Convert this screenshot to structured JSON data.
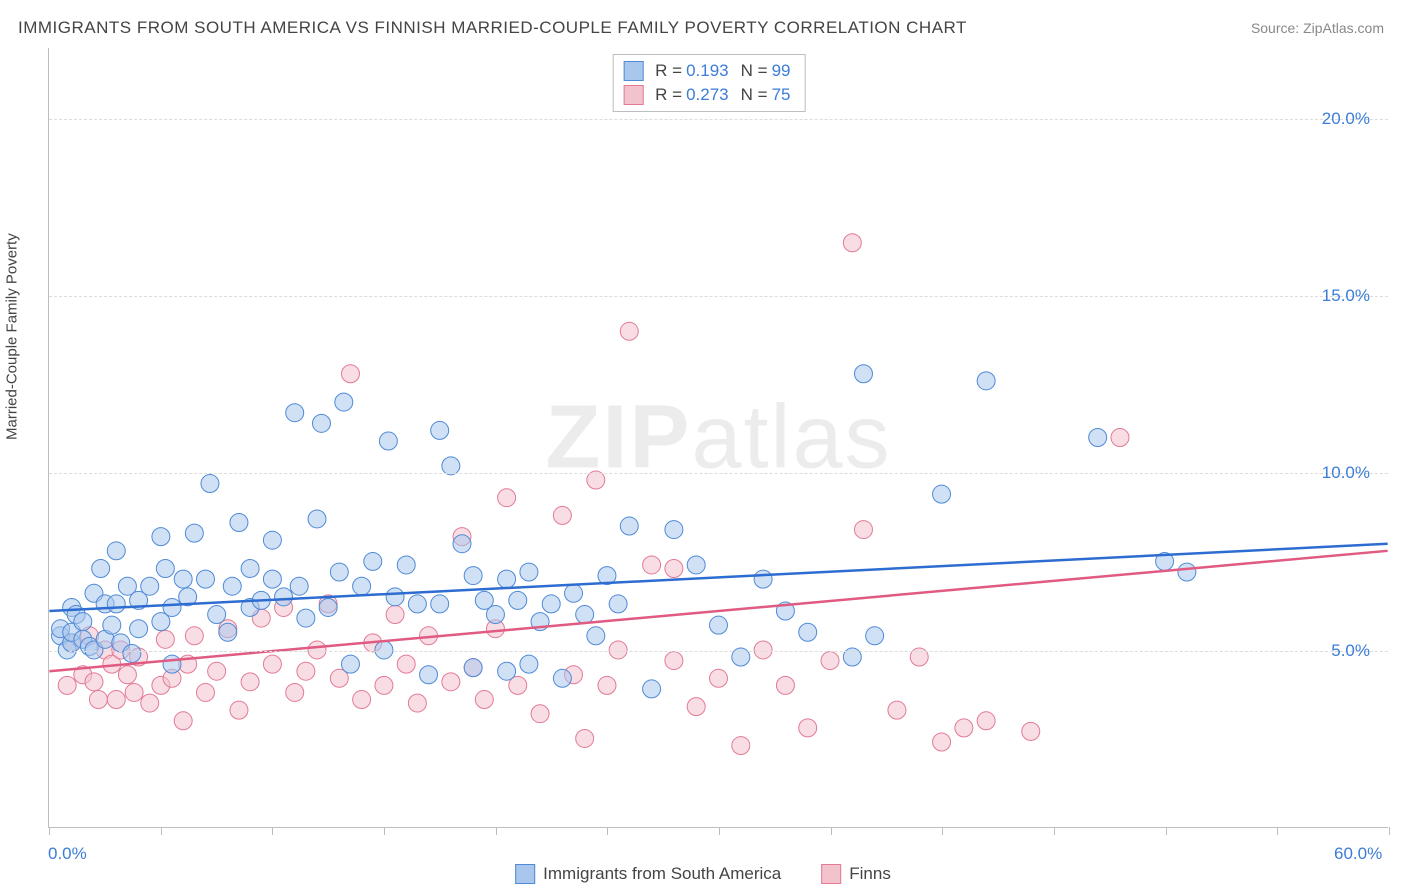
{
  "title": "IMMIGRANTS FROM SOUTH AMERICA VS FINNISH MARRIED-COUPLE FAMILY POVERTY CORRELATION CHART",
  "source": "Source: ZipAtlas.com",
  "watermark": "ZIPatlas",
  "y_axis_label": "Married-Couple Family Poverty",
  "colors": {
    "series_a_fill": "#a9c7ec",
    "series_a_stroke": "#4f8ad6",
    "series_b_fill": "#f3c3cd",
    "series_b_stroke": "#e27a95",
    "trend_a": "#2d6cd0",
    "trend_b": "#e05a82",
    "grid": "#dcdcdc",
    "axis": "#bdbdbd",
    "tick_text": "#3b7dd8",
    "text": "#444444",
    "background": "#ffffff"
  },
  "chart": {
    "type": "scatter",
    "xlim": [
      0,
      60
    ],
    "ylim": [
      0,
      22
    ],
    "x_ticks": [
      0,
      5,
      10,
      15,
      20,
      25,
      30,
      35,
      40,
      45,
      50,
      55,
      60
    ],
    "y_gridlines": [
      5,
      10,
      15,
      20
    ],
    "y_tick_labels": [
      {
        "v": 5,
        "t": "5.0%"
      },
      {
        "v": 10,
        "t": "10.0%"
      },
      {
        "v": 15,
        "t": "15.0%"
      },
      {
        "v": 20,
        "t": "20.0%"
      }
    ],
    "x_tick_labels": [
      {
        "v": 0,
        "t": "0.0%"
      },
      {
        "v": 60,
        "t": "60.0%"
      }
    ],
    "marker_radius": 9,
    "marker_opacity": 0.55,
    "trend_width": 2.5
  },
  "legend_r": {
    "rows": [
      {
        "series": "a",
        "r": "0.193",
        "n": "99"
      },
      {
        "series": "b",
        "r": "0.273",
        "n": "75"
      }
    ],
    "r_label": "R  =",
    "n_label": "N  ="
  },
  "legend_bottom": {
    "a": "Immigrants from South America",
    "b": "Finns"
  },
  "trend_lines": {
    "a": {
      "x1": 0,
      "y1": 6.1,
      "x2": 60,
      "y2": 8.0
    },
    "b": {
      "x1": 0,
      "y1": 4.4,
      "x2": 60,
      "y2": 7.8
    }
  },
  "series_a": [
    [
      0.5,
      5.4
    ],
    [
      0.5,
      5.6
    ],
    [
      0.8,
      5.0
    ],
    [
      1.0,
      6.2
    ],
    [
      1.0,
      5.2
    ],
    [
      1.0,
      5.5
    ],
    [
      1.2,
      6.0
    ],
    [
      1.5,
      5.8
    ],
    [
      1.5,
      5.3
    ],
    [
      1.8,
      5.1
    ],
    [
      2.0,
      5.0
    ],
    [
      2.0,
      6.6
    ],
    [
      2.3,
      7.3
    ],
    [
      2.5,
      5.3
    ],
    [
      2.5,
      6.3
    ],
    [
      2.8,
      5.7
    ],
    [
      3.0,
      6.3
    ],
    [
      3.0,
      7.8
    ],
    [
      3.2,
      5.2
    ],
    [
      3.5,
      6.8
    ],
    [
      3.7,
      4.9
    ],
    [
      4.0,
      6.4
    ],
    [
      4.0,
      5.6
    ],
    [
      4.5,
      6.8
    ],
    [
      5.0,
      5.8
    ],
    [
      5.0,
      8.2
    ],
    [
      5.2,
      7.3
    ],
    [
      5.5,
      6.2
    ],
    [
      5.5,
      4.6
    ],
    [
      6.0,
      7.0
    ],
    [
      6.2,
      6.5
    ],
    [
      6.5,
      8.3
    ],
    [
      7.0,
      7.0
    ],
    [
      7.2,
      9.7
    ],
    [
      7.5,
      6.0
    ],
    [
      8.0,
      5.5
    ],
    [
      8.2,
      6.8
    ],
    [
      8.5,
      8.6
    ],
    [
      9.0,
      6.2
    ],
    [
      9.0,
      7.3
    ],
    [
      9.5,
      6.4
    ],
    [
      10.0,
      7.0
    ],
    [
      10.0,
      8.1
    ],
    [
      10.5,
      6.5
    ],
    [
      11.0,
      11.7
    ],
    [
      11.2,
      6.8
    ],
    [
      11.5,
      5.9
    ],
    [
      12.0,
      8.7
    ],
    [
      12.2,
      11.4
    ],
    [
      12.5,
      6.2
    ],
    [
      13.0,
      7.2
    ],
    [
      13.2,
      12.0
    ],
    [
      13.5,
      4.6
    ],
    [
      14.0,
      6.8
    ],
    [
      14.5,
      7.5
    ],
    [
      15.0,
      5.0
    ],
    [
      15.2,
      10.9
    ],
    [
      15.5,
      6.5
    ],
    [
      16.0,
      7.4
    ],
    [
      16.5,
      6.3
    ],
    [
      17.0,
      4.3
    ],
    [
      17.5,
      11.2
    ],
    [
      17.5,
      6.3
    ],
    [
      18.0,
      10.2
    ],
    [
      18.5,
      8.0
    ],
    [
      19.0,
      7.1
    ],
    [
      19.0,
      4.5
    ],
    [
      19.5,
      6.4
    ],
    [
      20.0,
      6.0
    ],
    [
      20.5,
      7.0
    ],
    [
      21.0,
      6.4
    ],
    [
      21.5,
      4.6
    ],
    [
      22.0,
      5.8
    ],
    [
      22.5,
      6.3
    ],
    [
      23.0,
      4.2
    ],
    [
      23.5,
      6.6
    ],
    [
      24.0,
      6.0
    ],
    [
      24.5,
      5.4
    ],
    [
      25.0,
      7.1
    ],
    [
      25.5,
      6.3
    ],
    [
      26.0,
      8.5
    ],
    [
      27.0,
      3.9
    ],
    [
      28.0,
      8.4
    ],
    [
      29.0,
      7.4
    ],
    [
      30.0,
      5.7
    ],
    [
      31.0,
      4.8
    ],
    [
      32.0,
      7.0
    ],
    [
      33.0,
      6.1
    ],
    [
      34.0,
      5.5
    ],
    [
      36.0,
      4.8
    ],
    [
      37.0,
      5.4
    ],
    [
      40.0,
      9.4
    ],
    [
      42.0,
      12.6
    ],
    [
      47.0,
      11.0
    ],
    [
      50.0,
      7.5
    ],
    [
      51.0,
      7.2
    ],
    [
      36.5,
      12.8
    ],
    [
      20.5,
      4.4
    ],
    [
      21.5,
      7.2
    ]
  ],
  "series_b": [
    [
      0.8,
      4.0
    ],
    [
      1.0,
      5.2
    ],
    [
      1.5,
      4.3
    ],
    [
      1.8,
      5.4
    ],
    [
      2.0,
      4.1
    ],
    [
      2.2,
      3.6
    ],
    [
      2.5,
      5.0
    ],
    [
      2.8,
      4.6
    ],
    [
      3.0,
      3.6
    ],
    [
      3.2,
      5.0
    ],
    [
      3.5,
      4.3
    ],
    [
      3.8,
      3.8
    ],
    [
      4.0,
      4.8
    ],
    [
      4.5,
      3.5
    ],
    [
      5.0,
      4.0
    ],
    [
      5.2,
      5.3
    ],
    [
      5.5,
      4.2
    ],
    [
      6.0,
      3.0
    ],
    [
      6.2,
      4.6
    ],
    [
      6.5,
      5.4
    ],
    [
      7.0,
      3.8
    ],
    [
      7.5,
      4.4
    ],
    [
      8.0,
      5.6
    ],
    [
      8.5,
      3.3
    ],
    [
      9.0,
      4.1
    ],
    [
      9.5,
      5.9
    ],
    [
      10.0,
      4.6
    ],
    [
      10.5,
      6.2
    ],
    [
      11.0,
      3.8
    ],
    [
      11.5,
      4.4
    ],
    [
      12.0,
      5.0
    ],
    [
      12.5,
      6.3
    ],
    [
      13.0,
      4.2
    ],
    [
      13.5,
      12.8
    ],
    [
      14.0,
      3.6
    ],
    [
      14.5,
      5.2
    ],
    [
      15.0,
      4.0
    ],
    [
      15.5,
      6.0
    ],
    [
      16.0,
      4.6
    ],
    [
      16.5,
      3.5
    ],
    [
      17.0,
      5.4
    ],
    [
      18.0,
      4.1
    ],
    [
      18.5,
      8.2
    ],
    [
      19.0,
      4.5
    ],
    [
      19.5,
      3.6
    ],
    [
      20.0,
      5.6
    ],
    [
      20.5,
      9.3
    ],
    [
      21.0,
      4.0
    ],
    [
      22.0,
      3.2
    ],
    [
      23.0,
      8.8
    ],
    [
      23.5,
      4.3
    ],
    [
      24.0,
      2.5
    ],
    [
      24.5,
      9.8
    ],
    [
      25.0,
      4.0
    ],
    [
      25.5,
      5.0
    ],
    [
      26.0,
      14.0
    ],
    [
      27.0,
      7.4
    ],
    [
      28.0,
      4.7
    ],
    [
      28.0,
      7.3
    ],
    [
      29.0,
      3.4
    ],
    [
      30.0,
      4.2
    ],
    [
      31.0,
      2.3
    ],
    [
      32.0,
      5.0
    ],
    [
      33.0,
      4.0
    ],
    [
      34.0,
      2.8
    ],
    [
      35.0,
      4.7
    ],
    [
      36.0,
      16.5
    ],
    [
      36.5,
      8.4
    ],
    [
      38.0,
      3.3
    ],
    [
      39.0,
      4.8
    ],
    [
      41.0,
      2.8
    ],
    [
      42.0,
      3.0
    ],
    [
      44.0,
      2.7
    ],
    [
      48.0,
      11.0
    ],
    [
      40.0,
      2.4
    ]
  ]
}
